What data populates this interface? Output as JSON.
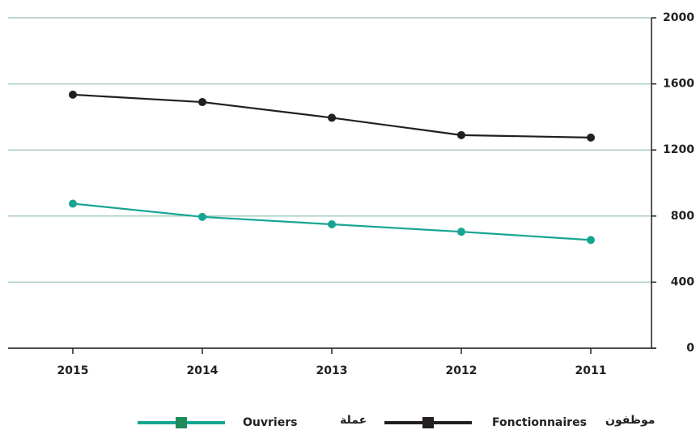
{
  "chart_data": {
    "type": "line",
    "categories": [
      "2015",
      "2014",
      "2013",
      "2012",
      "2011"
    ],
    "series": [
      {
        "name": "Fonctionnaires",
        "name_ar": "موظفون",
        "color": "#231f20",
        "values": [
          1535,
          1490,
          1395,
          1290,
          1275
        ]
      },
      {
        "name": "Ouvriers",
        "name_ar": "عملة",
        "color": "#16a593",
        "values": [
          875,
          795,
          750,
          705,
          655
        ]
      }
    ],
    "ylim": [
      0,
      2000
    ],
    "yticks": [
      0,
      400,
      800,
      1200,
      1600,
      2000
    ],
    "grid": true,
    "grid_color": "#a9cdb8",
    "y_axis_side": "right",
    "legend_position": "bottom"
  }
}
